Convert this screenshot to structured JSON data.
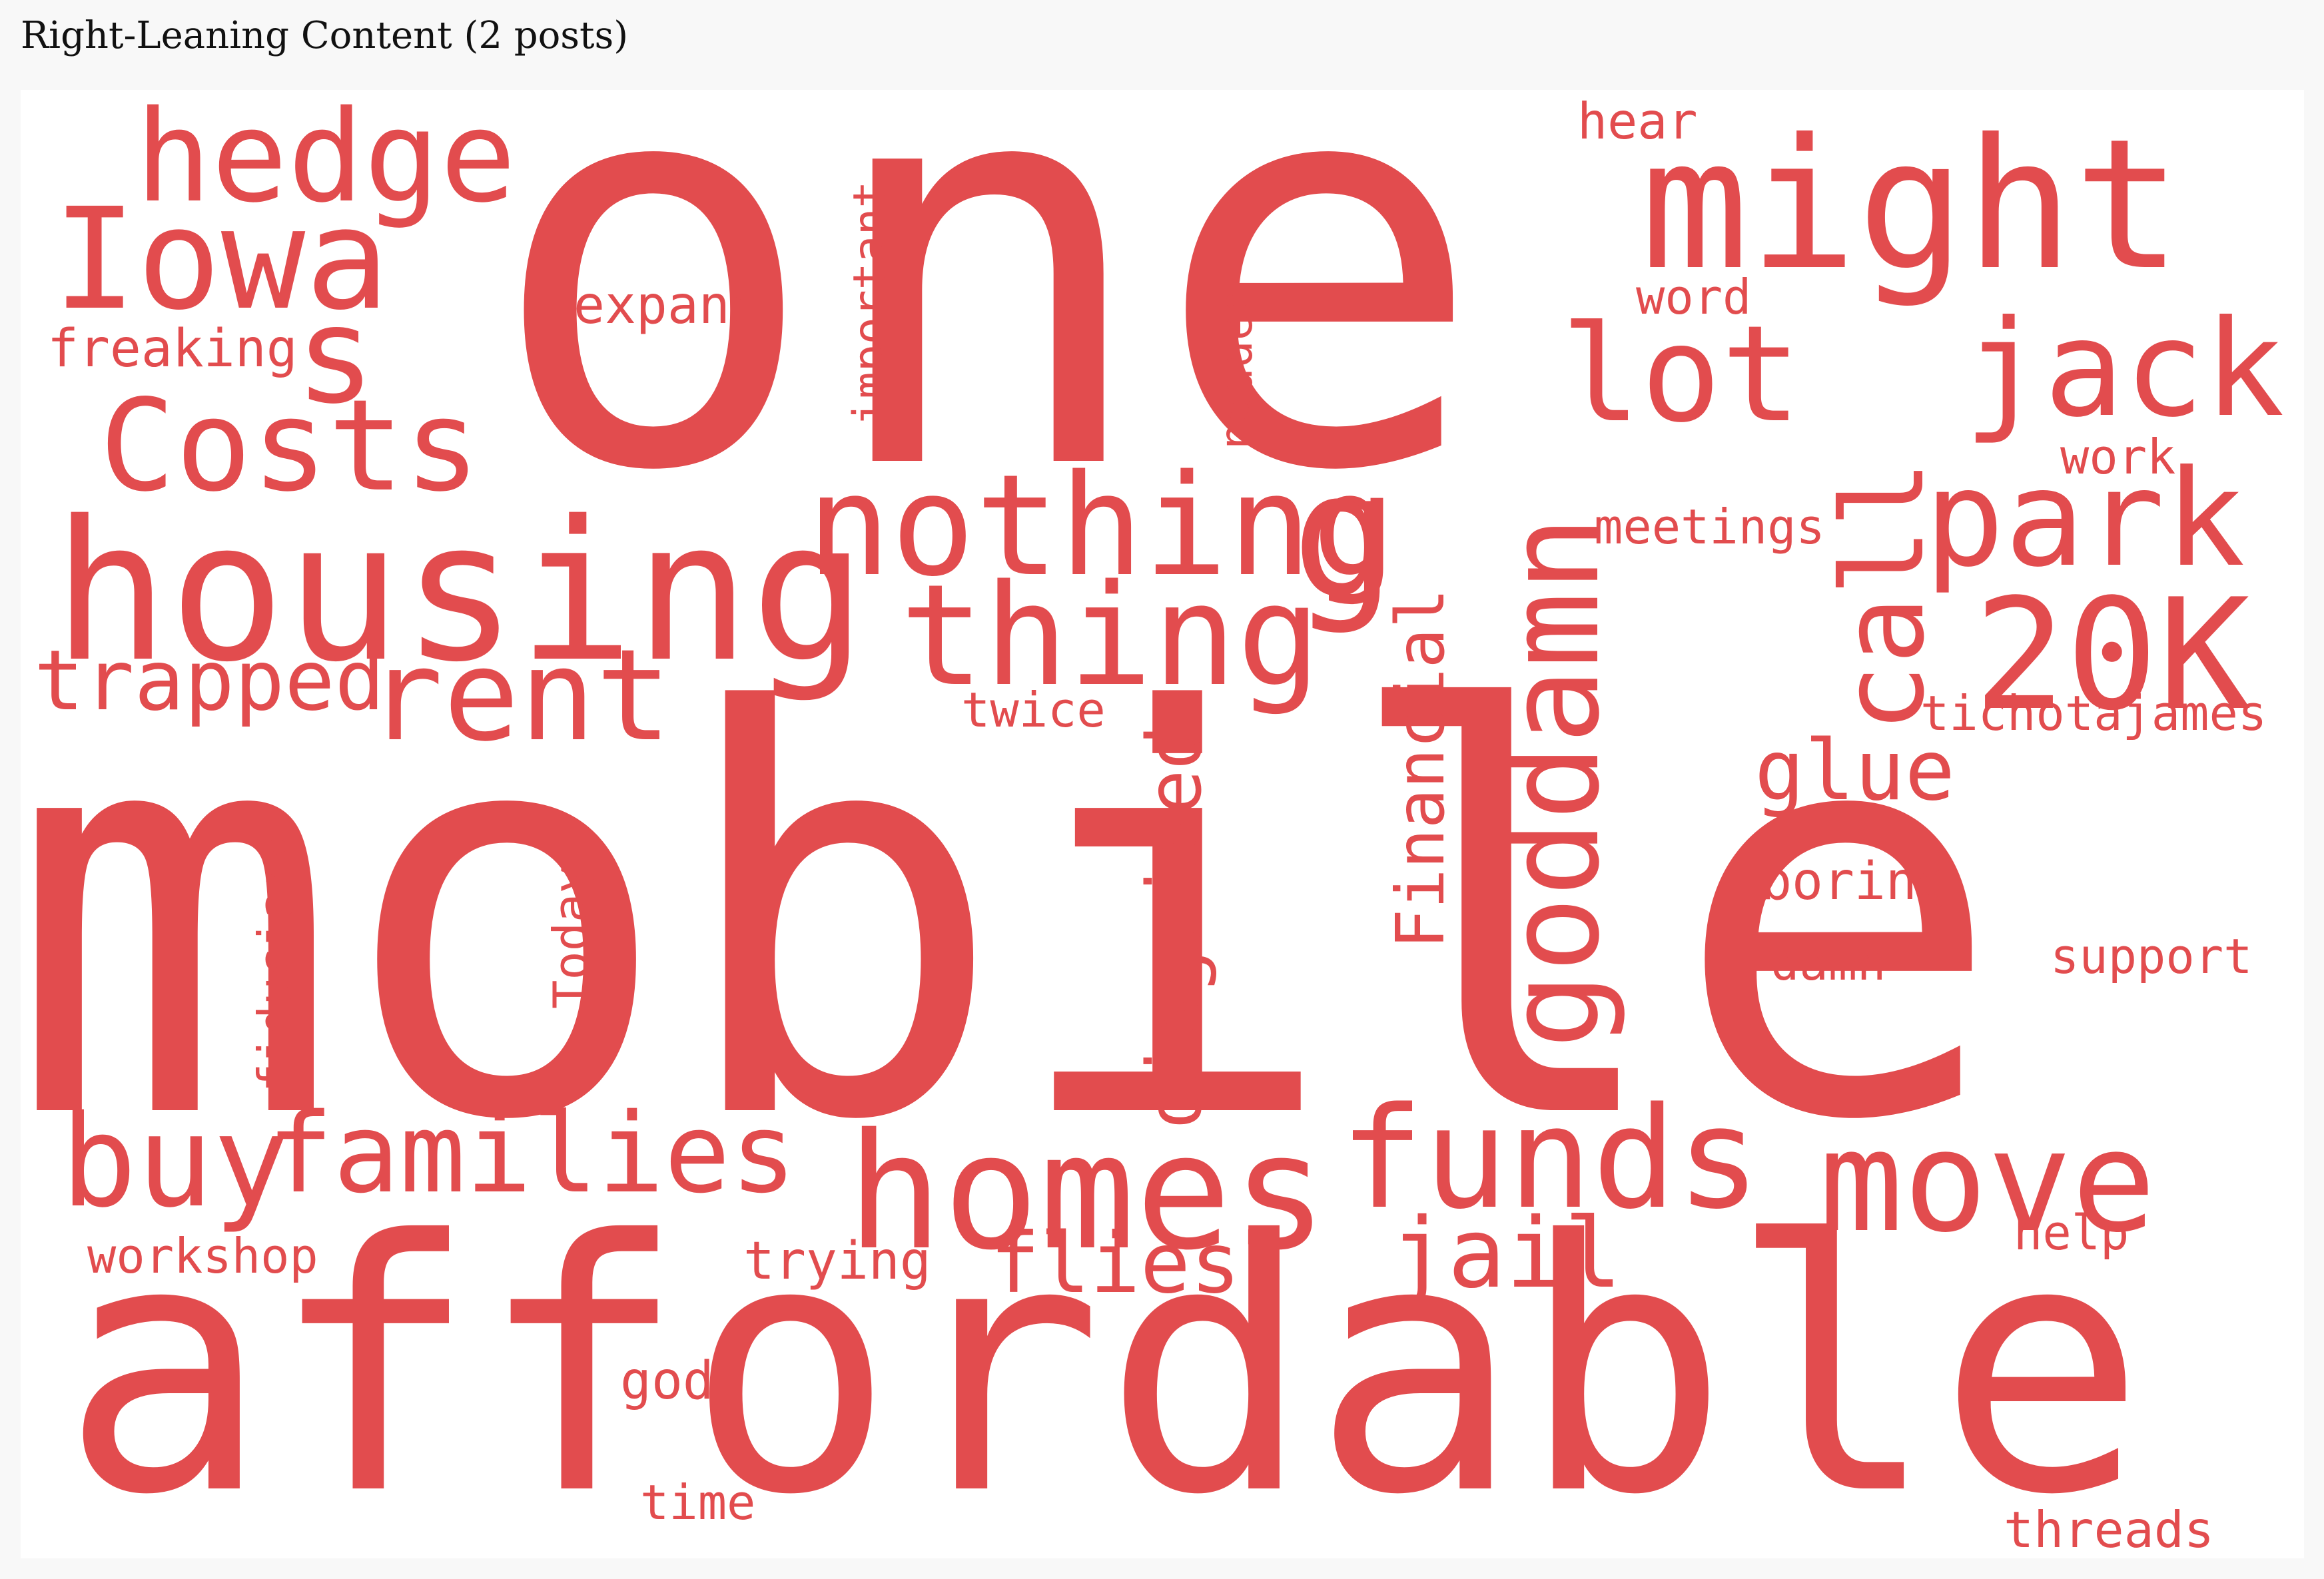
{
  "panel": {
    "title": "Right-Leaning Content (2 posts)"
  },
  "cloud": {
    "word_color": "#e24c4e",
    "words": [
      {
        "text": "one"
      },
      {
        "text": "mobile"
      },
      {
        "text": "affordable"
      },
      {
        "text": "housing"
      },
      {
        "text": "hedge"
      },
      {
        "text": "Iowa"
      },
      {
        "text": "s"
      },
      {
        "text": "Costs"
      },
      {
        "text": "might"
      },
      {
        "text": "lot"
      },
      {
        "text": "jack"
      },
      {
        "text": "park"
      },
      {
        "text": "20K"
      },
      {
        "text": "nothing"
      },
      {
        "text": "thing"
      },
      {
        "text": "rent"
      },
      {
        "text": "trapped"
      },
      {
        "text": "buy"
      },
      {
        "text": "families"
      },
      {
        "text": "homes"
      },
      {
        "text": "funds"
      },
      {
        "text": "move"
      },
      {
        "text": "jail"
      },
      {
        "text": "flies"
      },
      {
        "text": "glue"
      },
      {
        "text": "call"
      },
      {
        "text": "goddamn"
      },
      {
        "text": "Financial"
      },
      {
        "text": "disguised"
      },
      {
        "text": "g"
      },
      {
        "text": "expand"
      },
      {
        "text": "freaking"
      },
      {
        "text": "important"
      },
      {
        "text": "nodded"
      },
      {
        "text": "hear"
      },
      {
        "text": "word"
      },
      {
        "text": "work"
      },
      {
        "text": "meetings"
      },
      {
        "text": "tichotajames"
      },
      {
        "text": "twice"
      },
      {
        "text": "boring"
      },
      {
        "text": "damn"
      },
      {
        "text": "support"
      },
      {
        "text": "Today"
      },
      {
        "text": "fiduciary"
      },
      {
        "text": "workshop"
      },
      {
        "text": "trying"
      },
      {
        "text": "help"
      },
      {
        "text": "god"
      },
      {
        "text": "time"
      },
      {
        "text": "threads"
      }
    ]
  }
}
